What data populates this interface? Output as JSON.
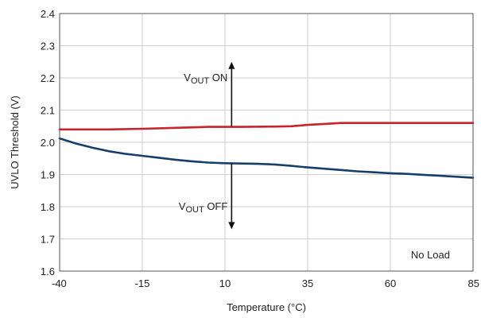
{
  "chart_data": {
    "type": "line",
    "title": "",
    "xlabel": "Temperature (°C)",
    "ylabel": "UVLO Threshold (V)",
    "xlim": [
      -40,
      85
    ],
    "ylim": [
      1.6,
      2.4
    ],
    "xticks": [
      -40,
      -15,
      10,
      35,
      60,
      85
    ],
    "xtick_labels": [
      "-40",
      "-15",
      "10",
      "35",
      "60",
      "85"
    ],
    "yticks": [
      1.6,
      1.7,
      1.8,
      1.9,
      2.0,
      2.1,
      2.2,
      2.3,
      2.4
    ],
    "ytick_labels": [
      "1.6",
      "1.7",
      "1.8",
      "1.9",
      "2.0",
      "2.1",
      "2.2",
      "2.3",
      "2.4"
    ],
    "grid": true,
    "series": [
      {
        "color": "#c8242b",
        "x": [
          -40,
          -25,
          -15,
          -5,
          5,
          15,
          25,
          30,
          35,
          40,
          45,
          55,
          65,
          75,
          85
        ],
        "y": [
          2.04,
          2.04,
          2.042,
          2.045,
          2.048,
          2.048,
          2.049,
          2.05,
          2.054,
          2.057,
          2.06,
          2.06,
          2.06,
          2.06,
          2.06
        ]
      },
      {
        "color": "#173f6b",
        "x": [
          -40,
          -35,
          -30,
          -25,
          -20,
          -15,
          -10,
          -5,
          0,
          5,
          10,
          15,
          20,
          25,
          30,
          35,
          40,
          45,
          50,
          55,
          60,
          65,
          70,
          75,
          80,
          85
        ],
        "y": [
          2.012,
          1.996,
          1.983,
          1.972,
          1.964,
          1.958,
          1.952,
          1.946,
          1.941,
          1.937,
          1.935,
          1.934,
          1.933,
          1.931,
          1.927,
          1.922,
          1.918,
          1.914,
          1.91,
          1.907,
          1.904,
          1.902,
          1.899,
          1.896,
          1.893,
          1.89
        ]
      }
    ],
    "annotations": {
      "vout_on": {
        "main": "V",
        "sub": "OUT",
        "suffix": " ON"
      },
      "vout_off": {
        "main": "V",
        "sub": "OUT",
        "suffix": " OFF"
      },
      "no_load": "No Load"
    },
    "arrows": {
      "x": 12,
      "up_from": 2.05,
      "up_to": 2.25,
      "down_from": 1.935,
      "down_to": 1.73
    }
  }
}
